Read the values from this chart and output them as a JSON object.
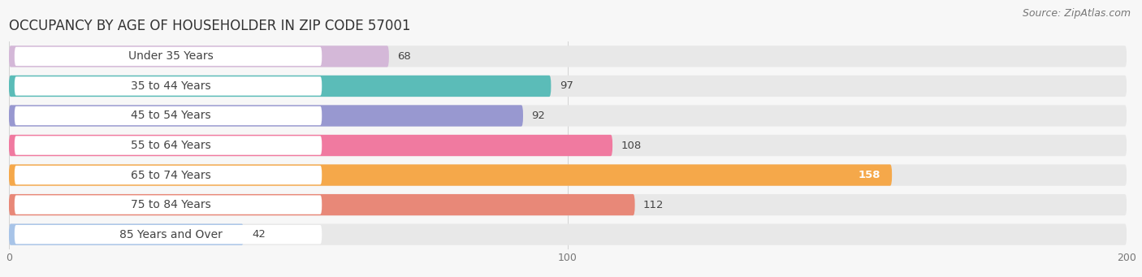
{
  "title": "OCCUPANCY BY AGE OF HOUSEHOLDER IN ZIP CODE 57001",
  "source": "Source: ZipAtlas.com",
  "categories": [
    "Under 35 Years",
    "35 to 44 Years",
    "45 to 54 Years",
    "55 to 64 Years",
    "65 to 74 Years",
    "75 to 84 Years",
    "85 Years and Over"
  ],
  "values": [
    68,
    97,
    92,
    108,
    158,
    112,
    42
  ],
  "bar_colors": [
    "#d4b8d8",
    "#5bbcb8",
    "#9898d0",
    "#f07aa0",
    "#f5a84a",
    "#e88878",
    "#a8c4e8"
  ],
  "value_inside_bar": [
    false,
    false,
    false,
    false,
    true,
    false,
    false
  ],
  "xlim": [
    0,
    200
  ],
  "xticks": [
    0,
    100,
    200
  ],
  "background_color": "#f7f7f7",
  "bar_bg_color": "#e8e8e8",
  "title_fontsize": 12,
  "source_fontsize": 9,
  "label_fontsize": 10,
  "value_fontsize": 9.5,
  "bar_height": 0.72,
  "bar_gap": 0.28,
  "figsize": [
    14.06,
    3.41
  ],
  "dpi": 100
}
